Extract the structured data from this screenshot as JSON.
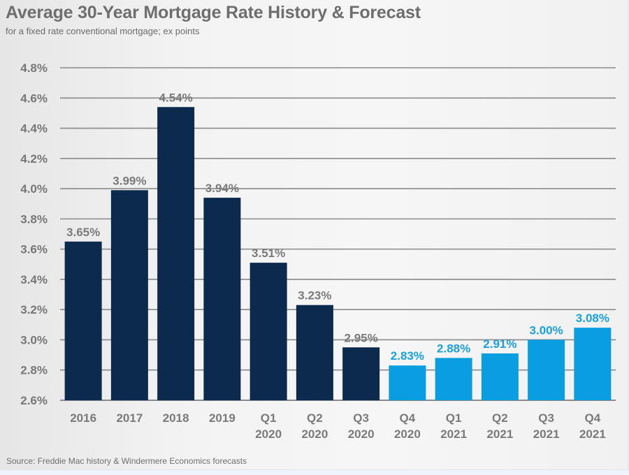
{
  "header": {
    "title": "Average 30-Year Mortgage Rate History & Forecast",
    "subtitle": "for a fixed rate conventional mortgage; ex points"
  },
  "footer": {
    "source": "Source: Freddie Mac history & Windermere Economics forecasts"
  },
  "colors": {
    "history": "#0b2a4e",
    "forecast": "#0a9ee0",
    "history_label": "#7a7a7a",
    "forecast_label": "#1a9fe0",
    "gridline": "#8a8a8a"
  },
  "chart_data": {
    "type": "bar",
    "title": "Average 30-Year Mortgage Rate History & Forecast",
    "subtitle": "for a fixed rate conventional mortgage; ex points",
    "xlabel": "",
    "ylabel": "",
    "ylim": [
      2.6,
      4.8
    ],
    "yticks": [
      2.6,
      2.8,
      3.0,
      3.2,
      3.4,
      3.6,
      3.8,
      4.0,
      4.2,
      4.4,
      4.6,
      4.8
    ],
    "ytick_labels": [
      "2.6%",
      "2.8%",
      "3.0%",
      "3.2%",
      "3.4%",
      "3.6%",
      "3.8%",
      "4.0%",
      "4.2%",
      "4.4%",
      "4.6%",
      "4.8%"
    ],
    "grid": true,
    "legend": "none",
    "categories": [
      [
        "2016"
      ],
      [
        "2017"
      ],
      [
        "2018"
      ],
      [
        "2019"
      ],
      [
        "Q1",
        "2020"
      ],
      [
        "Q2",
        "2020"
      ],
      [
        "Q3",
        "2020"
      ],
      [
        "Q4",
        "2020"
      ],
      [
        "Q1",
        "2021"
      ],
      [
        "Q2",
        "2021"
      ],
      [
        "Q3",
        "2021"
      ],
      [
        "Q4",
        "2021"
      ]
    ],
    "values": [
      3.65,
      3.99,
      4.54,
      3.94,
      3.51,
      3.23,
      2.95,
      2.83,
      2.88,
      2.91,
      3.0,
      3.08
    ],
    "value_labels": [
      "3.65%",
      "3.99%",
      "4.54%",
      "3.94%",
      "3.51%",
      "3.23%",
      "2.95%",
      "2.83%",
      "2.88%",
      "2.91%",
      "3.00%",
      "3.08%"
    ],
    "series_type": [
      "history",
      "history",
      "history",
      "history",
      "history",
      "history",
      "history",
      "forecast",
      "forecast",
      "forecast",
      "forecast",
      "forecast"
    ]
  }
}
